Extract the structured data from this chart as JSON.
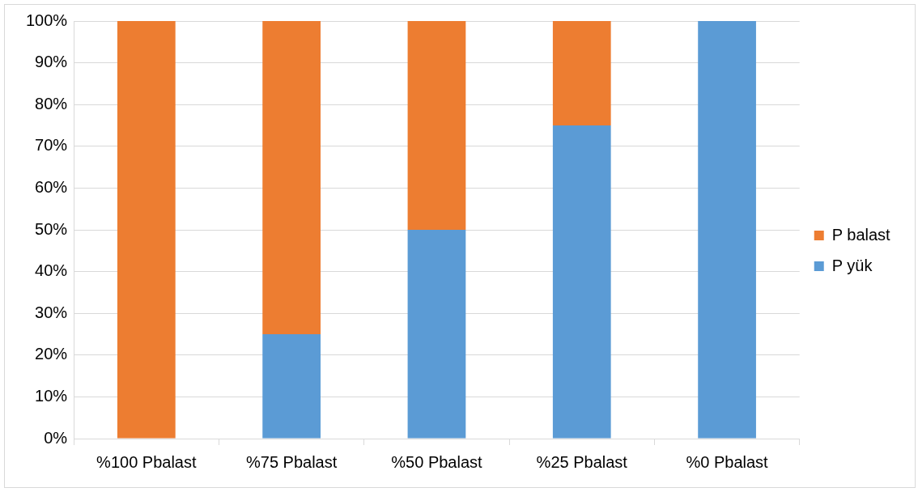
{
  "chart_data": {
    "type": "bar",
    "stacked": true,
    "categories": [
      "%100 Pbalast",
      "%75 Pbalast",
      "%50 Pbalast",
      "%25 Pbalast",
      "%0 Pbalast"
    ],
    "series": [
      {
        "name": "P yük",
        "color": "#5b9bd5",
        "values": [
          0,
          25,
          50,
          75,
          100
        ]
      },
      {
        "name": "P balast",
        "color": "#ed7d31",
        "values": [
          100,
          75,
          50,
          25,
          0
        ]
      }
    ],
    "ylim": [
      0,
      100
    ],
    "yticks": [
      {
        "value": 0,
        "label": "0%"
      },
      {
        "value": 10,
        "label": "10%"
      },
      {
        "value": 20,
        "label": "20%"
      },
      {
        "value": 30,
        "label": "30%"
      },
      {
        "value": 40,
        "label": "40%"
      },
      {
        "value": 50,
        "label": "50%"
      },
      {
        "value": 60,
        "label": "60%"
      },
      {
        "value": 70,
        "label": "70%"
      },
      {
        "value": 80,
        "label": "80%"
      },
      {
        "value": 90,
        "label": "90%"
      },
      {
        "value": 100,
        "label": "100%"
      }
    ],
    "grid": "y",
    "legend": "right"
  }
}
